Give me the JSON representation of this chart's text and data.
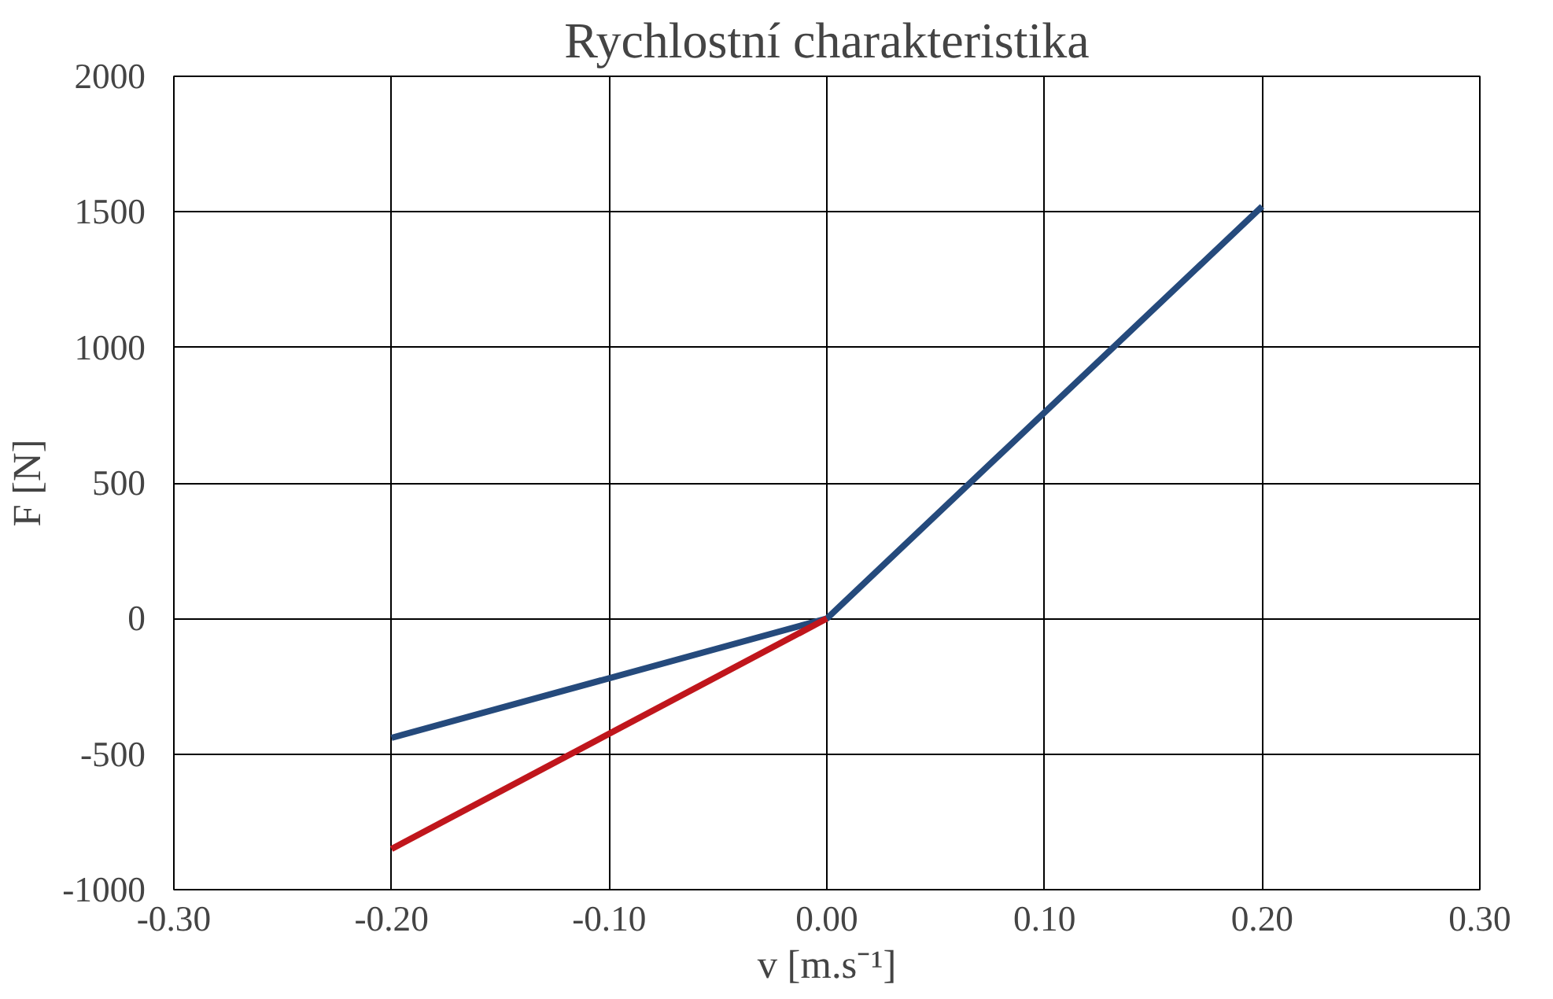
{
  "chart_data": {
    "type": "line",
    "title": "Rychlostní charakteristika",
    "xlabel": "v [m.s⁻¹]",
    "ylabel": "F [N]",
    "series": [
      {
        "color": "#254a7c",
        "x": [
          -0.2,
          0,
          0.2
        ],
        "values": [
          -440,
          0,
          1520
        ]
      },
      {
        "color": "#c0161c",
        "x": [
          -0.2,
          0
        ],
        "values": [
          -850,
          0
        ]
      }
    ],
    "xlim": [
      -0.3,
      0.3
    ],
    "ylim": [
      -1000,
      2000
    ],
    "xticks": [
      {
        "value": -0.3,
        "label": "-0.30"
      },
      {
        "value": -0.2,
        "label": "-0.20"
      },
      {
        "value": -0.1,
        "label": "-0.10"
      },
      {
        "value": 0,
        "label": "0.00"
      },
      {
        "value": 0.1,
        "label": "0.10"
      },
      {
        "value": 0.2,
        "label": "0.20"
      },
      {
        "value": 0.3,
        "label": "0.30"
      }
    ],
    "yticks": [
      -1000,
      -500,
      0,
      500,
      1000,
      1500,
      2000
    ],
    "grid": true,
    "marker": "none",
    "line_style": "solid"
  }
}
